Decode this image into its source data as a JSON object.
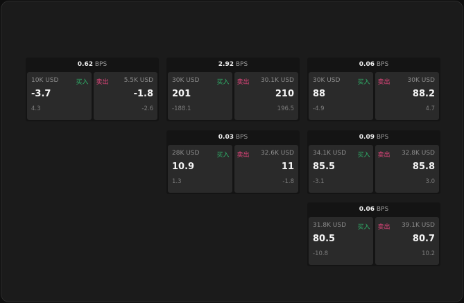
{
  "bps_unit": "BPS",
  "buy_label": "买入",
  "sell_label": "卖出",
  "tiles": [
    {
      "bps": "0.62",
      "buy": {
        "size": "10K USD",
        "price": "-3.7",
        "change": "4.3"
      },
      "sell": {
        "size": "5.5K USD",
        "price": "-1.8",
        "change": "-2.6"
      }
    },
    {
      "bps": "2.92",
      "buy": {
        "size": "30K USD",
        "price": "201",
        "change": "-188.1"
      },
      "sell": {
        "size": "30.1K USD",
        "price": "210",
        "change": "196.5"
      }
    },
    {
      "bps": "0.06",
      "buy": {
        "size": "30K USD",
        "price": "88",
        "change": "-4.9"
      },
      "sell": {
        "size": "30K USD",
        "price": "88.2",
        "change": "4.7"
      }
    },
    {
      "bps": "0.03",
      "buy": {
        "size": "28K USD",
        "price": "10.9",
        "change": "1.3"
      },
      "sell": {
        "size": "32.6K USD",
        "price": "11",
        "change": "-1.8"
      }
    },
    {
      "bps": "0.09",
      "buy": {
        "size": "34.1K USD",
        "price": "85.5",
        "change": "-3.1"
      },
      "sell": {
        "size": "32.8K USD",
        "price": "85.8",
        "change": "3.0"
      }
    },
    {
      "bps": "0.06",
      "buy": {
        "size": "31.8K USD",
        "price": "80.5",
        "change": "-10.8"
      },
      "sell": {
        "size": "39.1K USD",
        "price": "80.7",
        "change": "10.2"
      }
    }
  ]
}
